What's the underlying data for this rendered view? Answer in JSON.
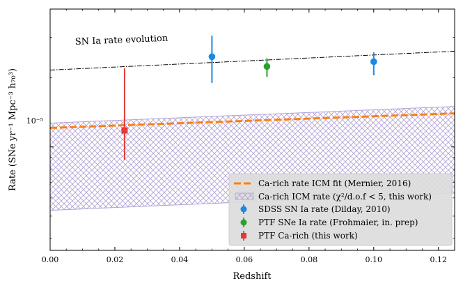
{
  "chart_data": {
    "type": "scatter",
    "title": "",
    "xlabel": "Redshift",
    "ylabel": "Rate (SNe yr⁻¹ Mpc⁻³ h₇₀³)",
    "xlim": [
      0.0,
      0.125
    ],
    "ylim_log10": [
      -5.45,
      -4.4
    ],
    "yscale": "log",
    "x_ticks": [
      0.0,
      0.02,
      0.04,
      0.06,
      0.08,
      0.1,
      0.12
    ],
    "x_tick_labels": [
      "0.00",
      "0.02",
      "0.04",
      "0.06",
      "0.08",
      "0.10",
      "0.12"
    ],
    "y_major_tick_label": "10⁻⁵",
    "grid": false,
    "legend_position": "lower-right",
    "annotation": "SN Ia rate evolution",
    "series": [
      {
        "name": "Ca-rich rate ICM fit (Mernier, 2016)",
        "kind": "dashed-line",
        "color": "#ff7f0e",
        "x": [
          0.0,
          0.125
        ],
        "y": [
          1.21e-05,
          1.4e-05
        ]
      },
      {
        "name": "Ca-rich ICM rate (χ²/d.o.f < 5, this work)",
        "kind": "hatched-band",
        "color": "#b3a3d4",
        "x": [
          0.0,
          0.125
        ],
        "y_upper": [
          1.27e-05,
          1.5e-05
        ],
        "y_lower": [
          5.3e-06,
          6.3e-06
        ]
      },
      {
        "name": "SDSS SN Ia rate (Dilday, 2010)",
        "kind": "errorbar",
        "color": "#1e88e5",
        "points": [
          {
            "x": 0.05,
            "y": 2.47e-05,
            "y_low": 1.9e-05,
            "y_high": 3.05e-05
          },
          {
            "x": 0.1,
            "y": 2.35e-05,
            "y_low": 2.05e-05,
            "y_high": 2.58e-05
          }
        ]
      },
      {
        "name": "PTF SNe Ia rate (Frohmaier, in. prep)",
        "kind": "errorbar",
        "color": "#2ca02c",
        "points": [
          {
            "x": 0.067,
            "y": 2.24e-05,
            "y_low": 2.02e-05,
            "y_high": 2.43e-05
          }
        ]
      },
      {
        "name": "PTF Ca-rich (this work)",
        "kind": "errorbar",
        "color": "#e53935",
        "points": [
          {
            "x": 0.023,
            "y": 1.18e-05,
            "y_low": 8.8e-06,
            "y_high": 2.2e-05
          }
        ]
      },
      {
        "name": "SN Ia rate evolution",
        "kind": "dashdot-line",
        "color": "#000000",
        "x": [
          0.0,
          0.125
        ],
        "y": [
          2.16e-05,
          2.61e-05
        ]
      }
    ]
  }
}
